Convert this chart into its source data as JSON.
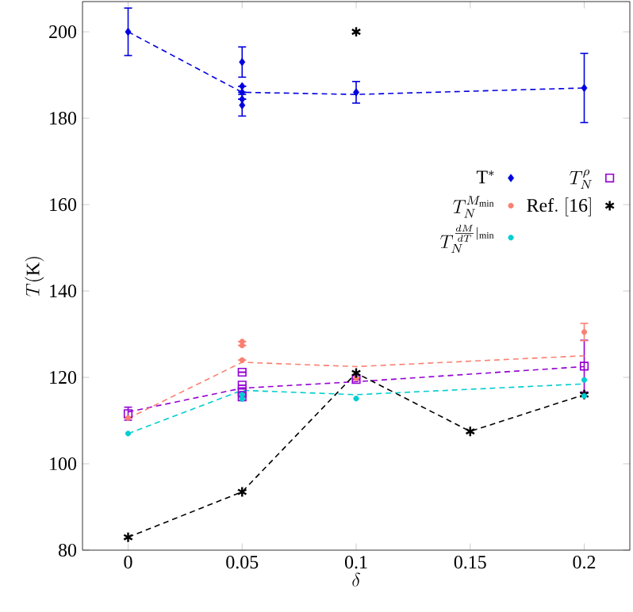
{
  "chart_data": {
    "type": "scatter",
    "xlabel": "\\delta",
    "ylabel": "T(\\mathrm{K})",
    "xlim": [
      -0.02,
      0.22
    ],
    "ylim": [
      80,
      207
    ],
    "xticks": [
      0,
      0.05,
      0.1,
      0.15,
      0.2
    ],
    "yticks": [
      80,
      100,
      120,
      140,
      160,
      180,
      200
    ],
    "legend": "right",
    "grid": false,
    "series": [
      {
        "name": "\\mathrm{T}^{*}",
        "color": "#0000e0",
        "marker": "diamond",
        "x": [
          0,
          0.05,
          0.05,
          0.05,
          0.05,
          0.05,
          0.1,
          0.2
        ],
        "values": [
          200,
          193,
          187.4,
          186,
          184.4,
          183,
          186,
          187
        ],
        "errors": [
          5.5,
          3.5,
          null,
          null,
          null,
          2.5,
          2.5,
          8
        ]
      },
      {
        "name": "T_N^{\\rho}",
        "color": "#9400d3",
        "marker": "square",
        "x": [
          0,
          0.05,
          0.05,
          0.05,
          0.05,
          0.1,
          0.2
        ],
        "values": [
          111.6,
          121.2,
          118.2,
          116.7,
          115.5,
          119.5,
          122.6
        ],
        "errors": [
          1.5,
          null,
          null,
          null,
          null,
          null,
          6
        ]
      },
      {
        "name": "T_N^{M_{\\min}}",
        "color": "#fa8072",
        "marker": "circle",
        "x": [
          0,
          0.05,
          0.05,
          0.05,
          0.1,
          0.2
        ],
        "values": [
          110.6,
          128.3,
          127.4,
          124,
          119.8,
          130.5
        ],
        "errors": [
          null,
          null,
          null,
          null,
          null,
          2
        ]
      },
      {
        "name": "\\mathrm{Ref.~[16]}",
        "color": "#000000",
        "marker": "cross",
        "x": [
          0,
          0.05,
          0.1,
          0.1,
          0.15,
          0.2
        ],
        "values": [
          83,
          93.5,
          121,
          200,
          107.5,
          116
        ]
      },
      {
        "name": "T_N^{\\frac{dM}{dT}|_{\\min}}",
        "color": "#00ced1",
        "marker": "circle",
        "x": [
          0,
          0.05,
          0.05,
          0.1,
          0.2,
          0.2
        ],
        "values": [
          107,
          115,
          116,
          115.1,
          119.4,
          115.7
        ]
      },
      {
        "type": "line",
        "color": "#0000e0",
        "line_style": "dashed",
        "marker": "none",
        "x": [
          0,
          0.05,
          0.1,
          0.2
        ],
        "values": [
          200,
          186,
          185.5,
          187
        ]
      },
      {
        "type": "line",
        "color": "#9400d3",
        "line_style": "dashed",
        "marker": "none",
        "x": [
          0,
          0.05,
          0.1,
          0.2
        ],
        "values": [
          112,
          117.5,
          119,
          122.5
        ]
      },
      {
        "type": "line",
        "color": "#fa8072",
        "line_style": "dashed",
        "marker": "none",
        "x": [
          0,
          0.05,
          0.1,
          0.2
        ],
        "values": [
          110.5,
          123.5,
          122.5,
          125
        ]
      },
      {
        "type": "line",
        "color": "#000000",
        "line_style": "dashed",
        "marker": "none",
        "x": [
          0,
          0.05,
          0.1,
          0.15,
          0.2
        ],
        "values": [
          83,
          93.5,
          121,
          107.5,
          116
        ]
      },
      {
        "type": "line",
        "color": "#00ced1",
        "line_style": "dashed",
        "marker": "none",
        "x": [
          0,
          0.05,
          0.1,
          0.2
        ],
        "values": [
          107,
          117,
          116,
          118.5
        ]
      }
    ]
  }
}
